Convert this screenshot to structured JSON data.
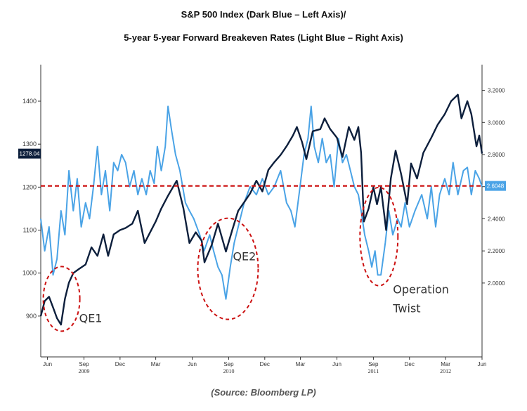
{
  "title_line1": "S&P 500 Index (Dark Blue – Left Axis)/",
  "title_line2": "5-year 5-year Forward Breakeven Rates (Light Blue – Right Axis)",
  "source": "(Source: Bloomberg LP)",
  "colors": {
    "sp500": "#0d1f3c",
    "breakeven": "#4aa3e6",
    "reference": "#cc1111",
    "annotation": "#cc1111",
    "axis": "#333333"
  },
  "chart_data": {
    "type": "line",
    "x_axis": {
      "range": [
        "2009-05-15",
        "2012-06-01"
      ],
      "months": [
        {
          "label": "Jun",
          "date": "2009-06-01"
        },
        {
          "label": "Sep",
          "date": "2009-09-01"
        },
        {
          "label": "Dec",
          "date": "2009-12-01"
        },
        {
          "label": "Mar",
          "date": "2010-03-01"
        },
        {
          "label": "Jun",
          "date": "2010-06-01"
        },
        {
          "label": "Sep",
          "date": "2010-09-01"
        },
        {
          "label": "Dec",
          "date": "2010-12-01"
        },
        {
          "label": "Mar",
          "date": "2011-03-01"
        },
        {
          "label": "Jun",
          "date": "2011-06-01"
        },
        {
          "label": "Sep",
          "date": "2011-09-01"
        },
        {
          "label": "Dec",
          "date": "2011-12-01"
        },
        {
          "label": "Mar",
          "date": "2012-03-01"
        },
        {
          "label": "Jun",
          "date": "2012-06-01"
        }
      ],
      "years": [
        {
          "label": "2009",
          "date": "2009-09-01"
        },
        {
          "label": "2010",
          "date": "2010-09-01"
        },
        {
          "label": "2011",
          "date": "2011-09-01"
        },
        {
          "label": "2012",
          "date": "2012-03-01"
        }
      ]
    },
    "left_axis": {
      "ylim": [
        805,
        1485
      ],
      "ticks": [
        "900",
        "1000",
        "1100",
        "1200",
        "1300",
        "1400"
      ]
    },
    "right_axis": {
      "ylim": [
        1.54,
        3.36
      ],
      "ticks": [
        "2.0000",
        "2.2000",
        "2.4000",
        "2.6000",
        "2.8000",
        "3.0000",
        "3.2000"
      ]
    },
    "series": [
      {
        "name": "S&P 500 Index",
        "axis": "left",
        "last_value_label": "1278.04",
        "points": [
          [
            "2009-05-15",
            900
          ],
          [
            "2009-05-25",
            935
          ],
          [
            "2009-06-05",
            945
          ],
          [
            "2009-06-15",
            920
          ],
          [
            "2009-06-25",
            895
          ],
          [
            "2009-07-05",
            880
          ],
          [
            "2009-07-15",
            940
          ],
          [
            "2009-07-25",
            978
          ],
          [
            "2009-08-05",
            1000
          ],
          [
            "2009-08-20",
            1010
          ],
          [
            "2009-09-05",
            1020
          ],
          [
            "2009-09-20",
            1060
          ],
          [
            "2009-10-05",
            1040
          ],
          [
            "2009-10-20",
            1090
          ],
          [
            "2009-11-01",
            1040
          ],
          [
            "2009-11-15",
            1090
          ],
          [
            "2009-12-01",
            1100
          ],
          [
            "2009-12-15",
            1105
          ],
          [
            "2010-01-01",
            1115
          ],
          [
            "2010-01-15",
            1145
          ],
          [
            "2010-02-01",
            1070
          ],
          [
            "2010-02-15",
            1095
          ],
          [
            "2010-03-01",
            1120
          ],
          [
            "2010-03-15",
            1150
          ],
          [
            "2010-04-01",
            1180
          ],
          [
            "2010-04-23",
            1215
          ],
          [
            "2010-05-10",
            1150
          ],
          [
            "2010-05-25",
            1070
          ],
          [
            "2010-06-10",
            1095
          ],
          [
            "2010-06-25",
            1075
          ],
          [
            "2010-07-02",
            1025
          ],
          [
            "2010-07-20",
            1065
          ],
          [
            "2010-08-05",
            1115
          ],
          [
            "2010-08-25",
            1050
          ],
          [
            "2010-09-10",
            1100
          ],
          [
            "2010-09-25",
            1145
          ],
          [
            "2010-10-10",
            1165
          ],
          [
            "2010-10-25",
            1185
          ],
          [
            "2010-11-10",
            1215
          ],
          [
            "2010-11-25",
            1190
          ],
          [
            "2010-12-10",
            1240
          ],
          [
            "2010-12-25",
            1258
          ],
          [
            "2011-01-10",
            1275
          ],
          [
            "2011-01-25",
            1295
          ],
          [
            "2011-02-10",
            1320
          ],
          [
            "2011-02-20",
            1340
          ],
          [
            "2011-03-05",
            1305
          ],
          [
            "2011-03-16",
            1265
          ],
          [
            "2011-04-01",
            1330
          ],
          [
            "2011-04-20",
            1335
          ],
          [
            "2011-05-01",
            1360
          ],
          [
            "2011-05-15",
            1335
          ],
          [
            "2011-06-01",
            1315
          ],
          [
            "2011-06-15",
            1270
          ],
          [
            "2011-07-01",
            1340
          ],
          [
            "2011-07-15",
            1310
          ],
          [
            "2011-07-25",
            1340
          ],
          [
            "2011-08-01",
            1280
          ],
          [
            "2011-08-08",
            1120
          ],
          [
            "2011-08-20",
            1150
          ],
          [
            "2011-09-01",
            1200
          ],
          [
            "2011-09-10",
            1160
          ],
          [
            "2011-09-20",
            1200
          ],
          [
            "2011-10-03",
            1100
          ],
          [
            "2011-10-15",
            1220
          ],
          [
            "2011-10-27",
            1285
          ],
          [
            "2011-11-10",
            1230
          ],
          [
            "2011-11-25",
            1160
          ],
          [
            "2011-12-05",
            1255
          ],
          [
            "2011-12-20",
            1220
          ],
          [
            "2012-01-05",
            1280
          ],
          [
            "2012-01-25",
            1315
          ],
          [
            "2012-02-10",
            1345
          ],
          [
            "2012-02-28",
            1370
          ],
          [
            "2012-03-15",
            1400
          ],
          [
            "2012-04-01",
            1415
          ],
          [
            "2012-04-10",
            1360
          ],
          [
            "2012-04-25",
            1400
          ],
          [
            "2012-05-05",
            1370
          ],
          [
            "2012-05-18",
            1295
          ],
          [
            "2012-05-25",
            1320
          ],
          [
            "2012-06-01",
            1278
          ]
        ]
      },
      {
        "name": "5-year 5-year Forward Breakeven Rates",
        "axis": "right",
        "last_value_label": "2.6048",
        "points": [
          [
            "2009-05-15",
            2.4
          ],
          [
            "2009-05-25",
            2.2
          ],
          [
            "2009-06-05",
            2.35
          ],
          [
            "2009-06-15",
            2.05
          ],
          [
            "2009-06-25",
            2.15
          ],
          [
            "2009-07-05",
            2.45
          ],
          [
            "2009-07-15",
            2.3
          ],
          [
            "2009-07-25",
            2.7
          ],
          [
            "2009-08-05",
            2.45
          ],
          [
            "2009-08-15",
            2.65
          ],
          [
            "2009-08-25",
            2.35
          ],
          [
            "2009-09-05",
            2.5
          ],
          [
            "2009-09-15",
            2.4
          ],
          [
            "2009-09-25",
            2.6
          ],
          [
            "2009-10-05",
            2.85
          ],
          [
            "2009-10-15",
            2.55
          ],
          [
            "2009-10-25",
            2.7
          ],
          [
            "2009-11-05",
            2.45
          ],
          [
            "2009-11-15",
            2.75
          ],
          [
            "2009-11-25",
            2.7
          ],
          [
            "2009-12-05",
            2.8
          ],
          [
            "2009-12-15",
            2.75
          ],
          [
            "2009-12-25",
            2.6
          ],
          [
            "2010-01-05",
            2.7
          ],
          [
            "2010-01-15",
            2.55
          ],
          [
            "2010-01-25",
            2.65
          ],
          [
            "2010-02-05",
            2.55
          ],
          [
            "2010-02-15",
            2.7
          ],
          [
            "2010-02-25",
            2.62
          ],
          [
            "2010-03-05",
            2.85
          ],
          [
            "2010-03-15",
            2.7
          ],
          [
            "2010-03-25",
            2.85
          ],
          [
            "2010-04-01",
            3.1
          ],
          [
            "2010-04-10",
            2.95
          ],
          [
            "2010-04-20",
            2.8
          ],
          [
            "2010-05-01",
            2.7
          ],
          [
            "2010-05-15",
            2.5
          ],
          [
            "2010-05-25",
            2.45
          ],
          [
            "2010-06-05",
            2.4
          ],
          [
            "2010-06-20",
            2.3
          ],
          [
            "2010-07-01",
            2.2
          ],
          [
            "2010-07-15",
            2.3
          ],
          [
            "2010-07-25",
            2.2
          ],
          [
            "2010-08-05",
            2.1
          ],
          [
            "2010-08-15",
            2.05
          ],
          [
            "2010-08-25",
            1.9
          ],
          [
            "2010-09-05",
            2.1
          ],
          [
            "2010-09-15",
            2.25
          ],
          [
            "2010-09-25",
            2.35
          ],
          [
            "2010-10-10",
            2.5
          ],
          [
            "2010-10-25",
            2.6
          ],
          [
            "2010-11-10",
            2.55
          ],
          [
            "2010-11-25",
            2.65
          ],
          [
            "2010-12-10",
            2.55
          ],
          [
            "2010-12-25",
            2.6
          ],
          [
            "2011-01-10",
            2.7
          ],
          [
            "2011-01-25",
            2.5
          ],
          [
            "2011-02-05",
            2.45
          ],
          [
            "2011-02-15",
            2.35
          ],
          [
            "2011-02-28",
            2.6
          ],
          [
            "2011-03-10",
            2.8
          ],
          [
            "2011-03-20",
            2.9
          ],
          [
            "2011-03-28",
            3.1
          ],
          [
            "2011-04-05",
            2.85
          ],
          [
            "2011-04-15",
            2.75
          ],
          [
            "2011-04-25",
            2.9
          ],
          [
            "2011-05-05",
            2.75
          ],
          [
            "2011-05-15",
            2.8
          ],
          [
            "2011-05-25",
            2.6
          ],
          [
            "2011-06-05",
            2.9
          ],
          [
            "2011-06-15",
            2.75
          ],
          [
            "2011-06-25",
            2.8
          ],
          [
            "2011-07-05",
            2.7
          ],
          [
            "2011-07-15",
            2.6
          ],
          [
            "2011-07-25",
            2.55
          ],
          [
            "2011-08-01",
            2.45
          ],
          [
            "2011-08-10",
            2.3
          ],
          [
            "2011-08-20",
            2.2
          ],
          [
            "2011-08-28",
            2.1
          ],
          [
            "2011-09-05",
            2.2
          ],
          [
            "2011-09-12",
            2.05
          ],
          [
            "2011-09-20",
            2.05
          ],
          [
            "2011-10-01",
            2.25
          ],
          [
            "2011-10-10",
            2.45
          ],
          [
            "2011-10-20",
            2.3
          ],
          [
            "2011-11-01",
            2.4
          ],
          [
            "2011-11-10",
            2.35
          ],
          [
            "2011-11-20",
            2.5
          ],
          [
            "2011-12-01",
            2.35
          ],
          [
            "2011-12-15",
            2.45
          ],
          [
            "2012-01-01",
            2.55
          ],
          [
            "2012-01-15",
            2.4
          ],
          [
            "2012-01-25",
            2.6
          ],
          [
            "2012-02-05",
            2.35
          ],
          [
            "2012-02-15",
            2.55
          ],
          [
            "2012-02-28",
            2.65
          ],
          [
            "2012-03-10",
            2.55
          ],
          [
            "2012-03-20",
            2.75
          ],
          [
            "2012-04-01",
            2.55
          ],
          [
            "2012-04-15",
            2.7
          ],
          [
            "2012-04-25",
            2.72
          ],
          [
            "2012-05-05",
            2.55
          ],
          [
            "2012-05-15",
            2.7
          ],
          [
            "2012-05-25",
            2.65
          ],
          [
            "2012-06-01",
            2.6
          ]
        ]
      }
    ],
    "reference_line": {
      "axis": "right",
      "value": 2.6048,
      "style": "dashed"
    },
    "annotations": [
      {
        "label": "QE1",
        "date": "2009-07-10",
        "value_left": 940
      },
      {
        "label": "QE2",
        "date": "2010-09-01",
        "value_left": 1010
      },
      {
        "label": "Operation",
        "date": "2011-09-15",
        "value_left": 1085
      },
      {
        "label": "Twist",
        "date": "2011-09-15",
        "value_left": 1085
      }
    ]
  }
}
